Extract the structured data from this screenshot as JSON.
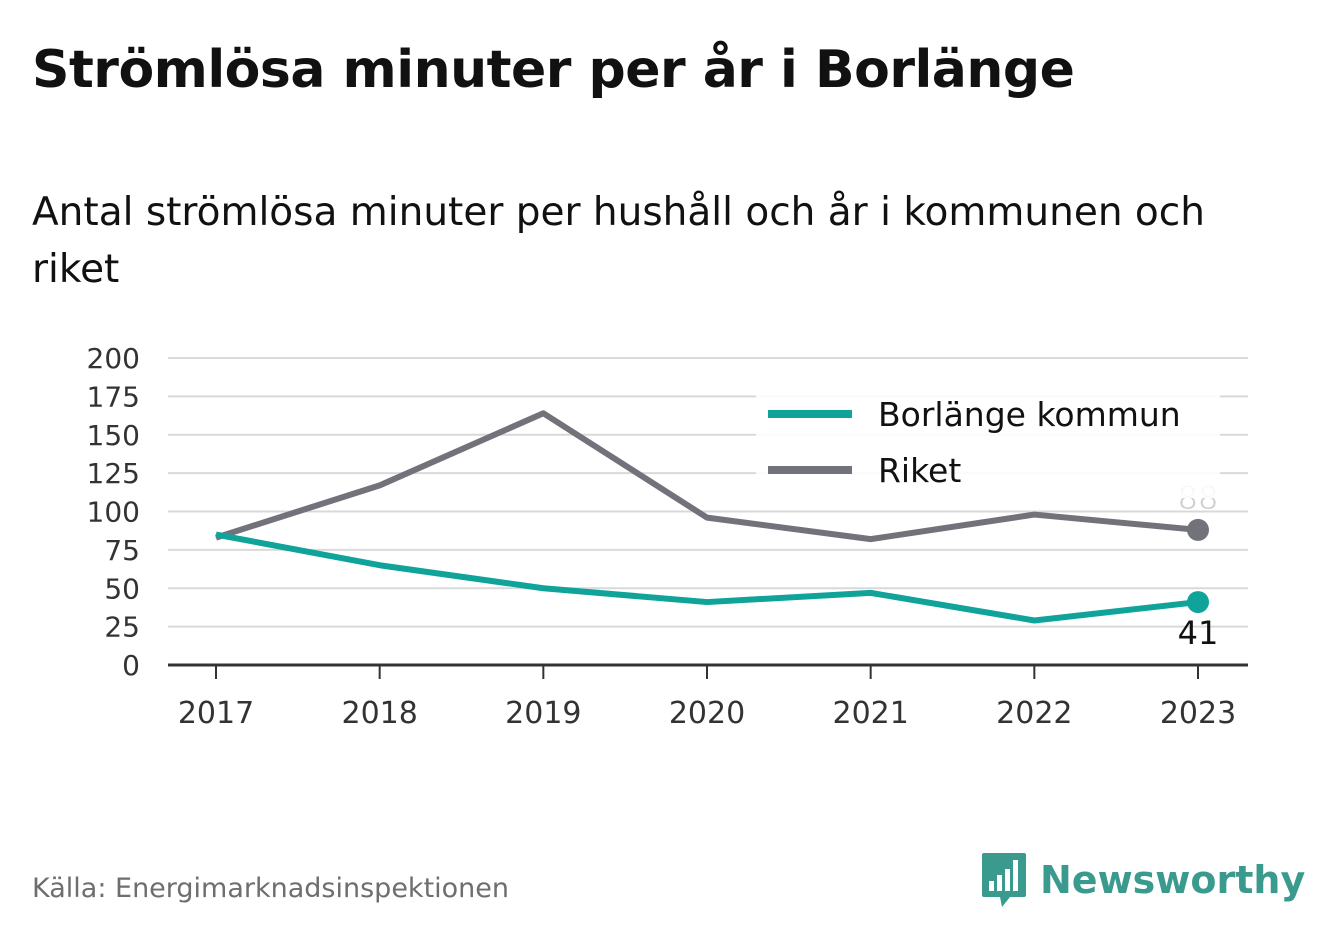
{
  "header": {
    "title": "Strömlösa minuter per år i Borlänge",
    "subtitle": "Antal strömlösa minuter per hushåll och år i kommunen och riket"
  },
  "footer": {
    "source": "Källa: Energimarknadsinspektionen",
    "brand": "Newsworthy",
    "brand_icon": "newsworthy-logo-icon"
  },
  "colors": {
    "borlange": "#0fa39a",
    "riket": "#72727a",
    "grid": "#d9d9d9",
    "axis": "#333333",
    "brand": "#3a9a8e"
  },
  "chart_data": {
    "type": "line",
    "categories": [
      "2017",
      "2018",
      "2019",
      "2020",
      "2021",
      "2022",
      "2023"
    ],
    "series": [
      {
        "name": "Borlänge kommun",
        "values": [
          85,
          65,
          50,
          41,
          47,
          29,
          41
        ]
      },
      {
        "name": "Riket",
        "values": [
          83,
          117,
          164,
          96,
          82,
          98,
          88
        ]
      }
    ],
    "yticks": [
      "0",
      "25",
      "50",
      "75",
      "100",
      "125",
      "150",
      "175",
      "200"
    ],
    "ylim": [
      0,
      200
    ],
    "grid": true,
    "legend": "top-right",
    "end_labels": {
      "Borlänge kommun": "41",
      "Riket": "88"
    }
  }
}
